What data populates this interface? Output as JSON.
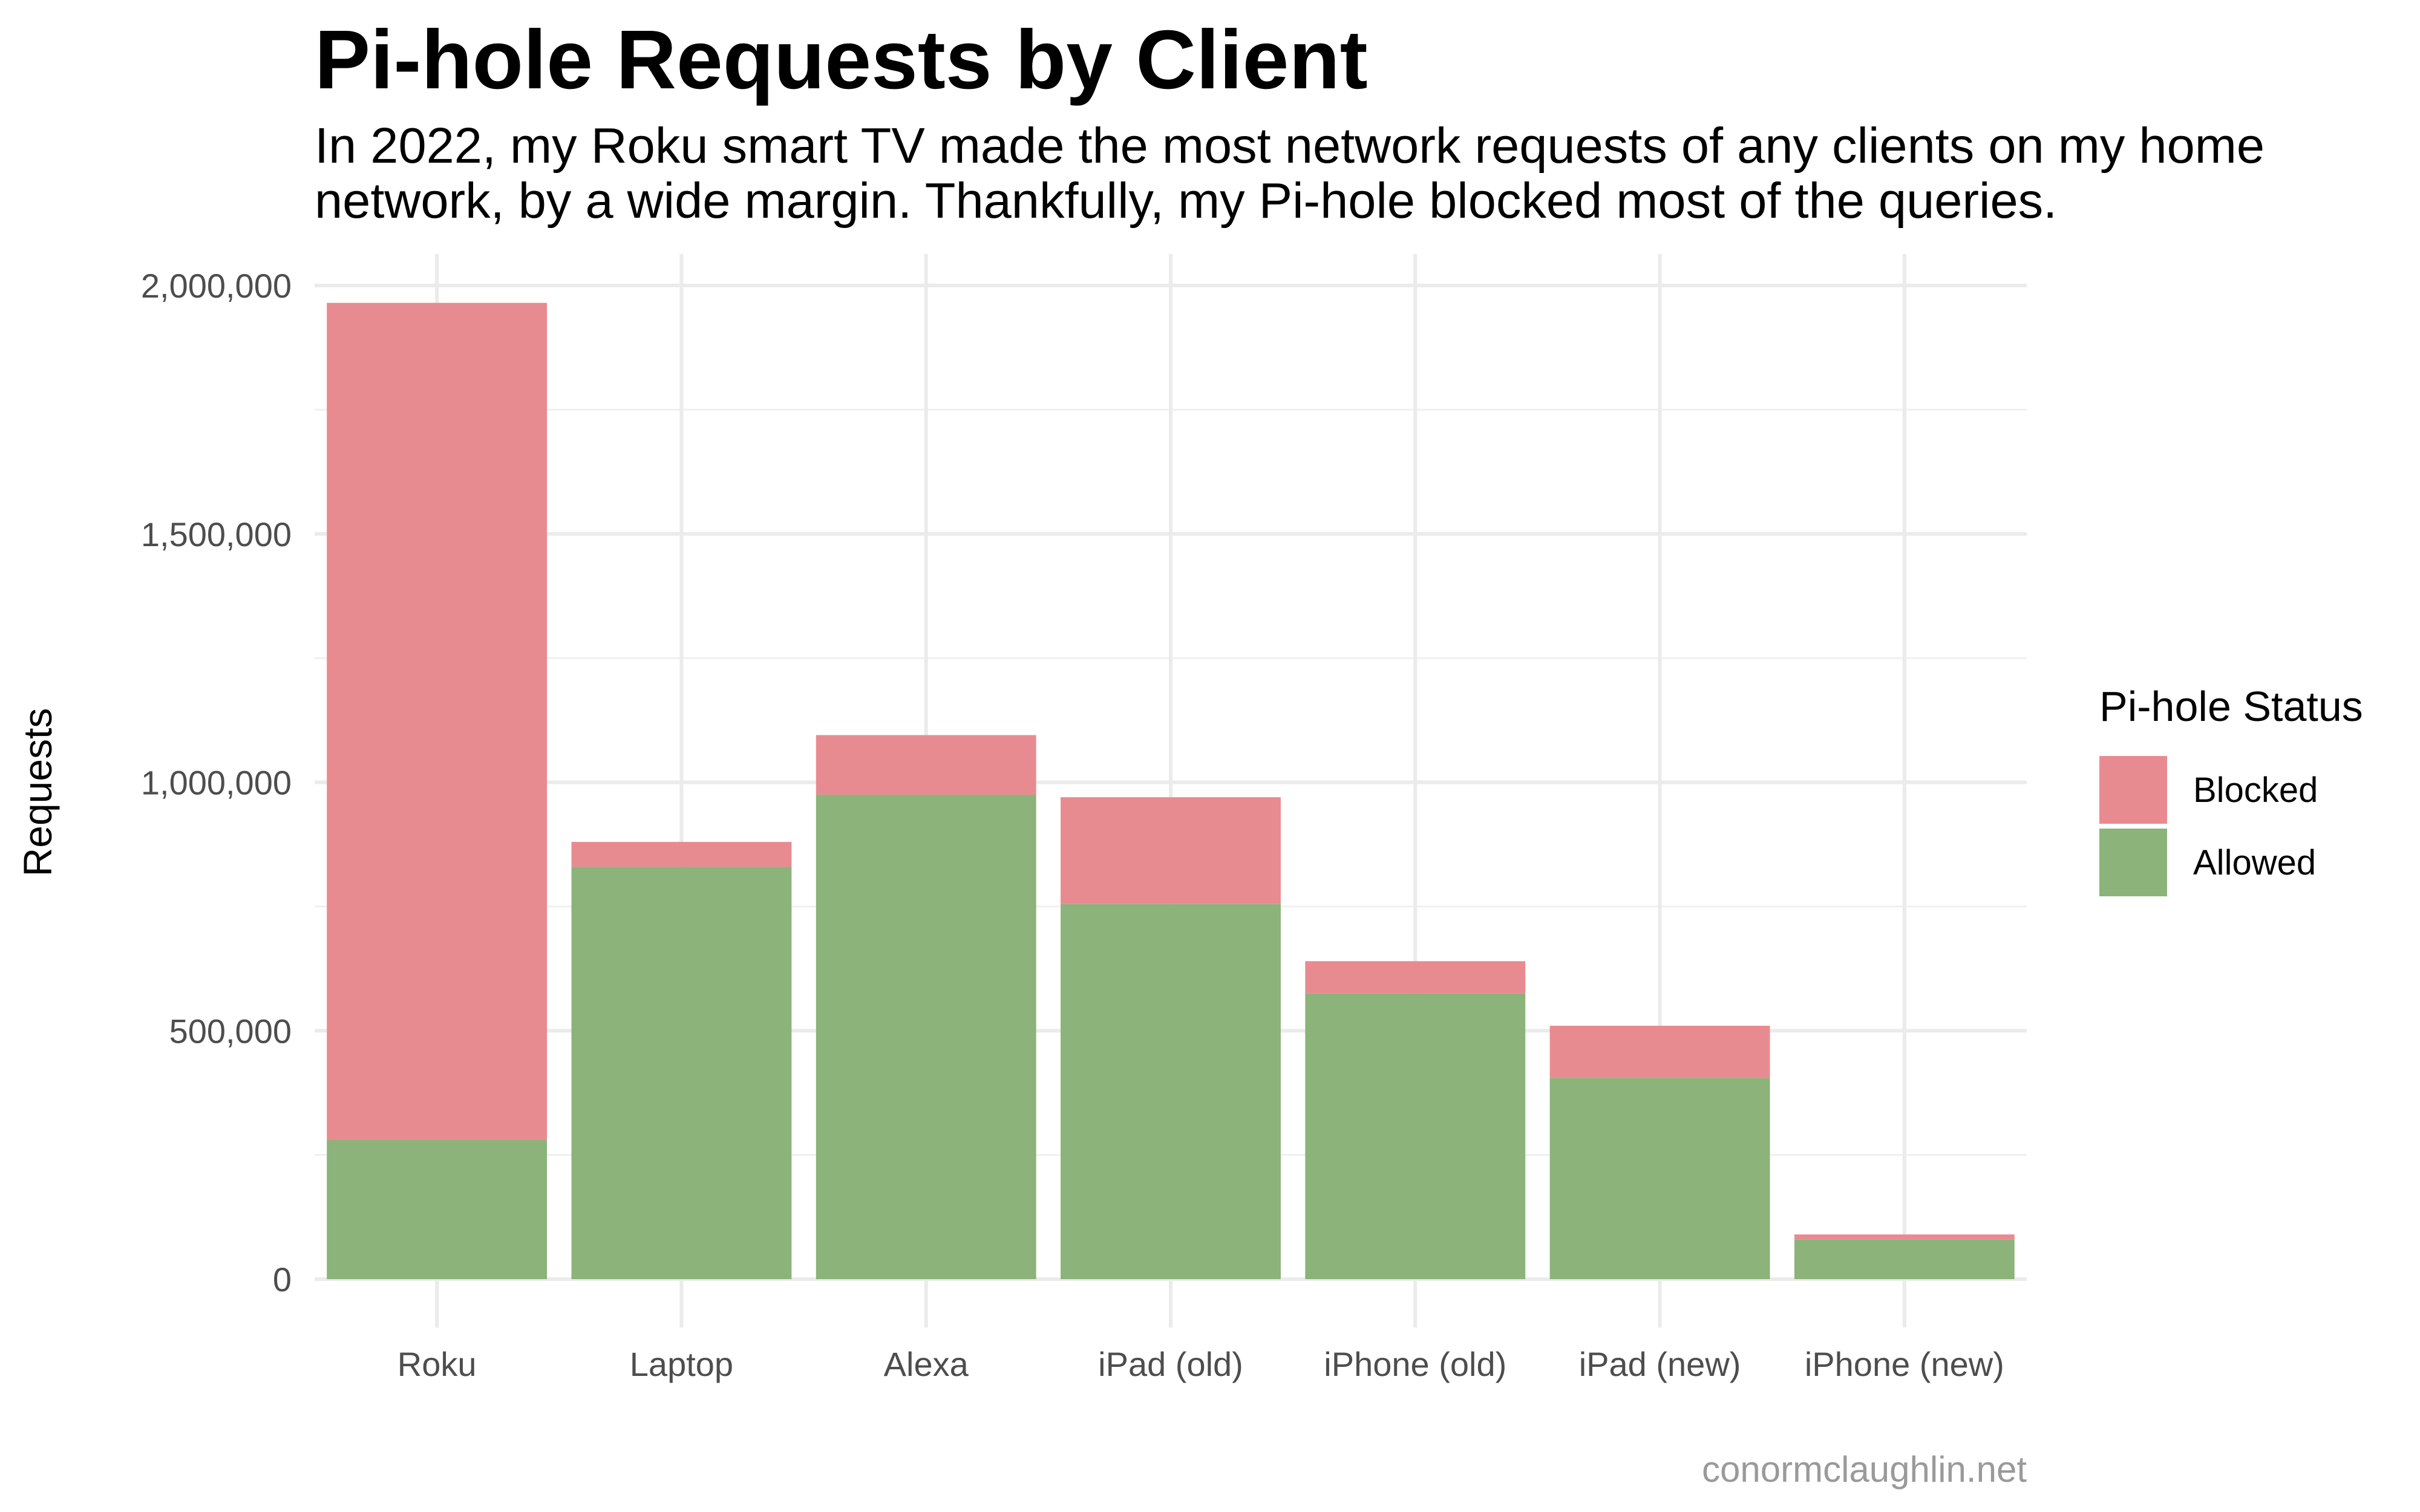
{
  "caption": "conormclaughlin.net",
  "chart_data": {
    "type": "bar",
    "stacked": true,
    "title": "Pi-hole Requests by Client",
    "subtitle": "In 2022, my Roku smart TV made the most network requests of any clients on my home network, by a wide margin. Thankfully, my Pi-hole blocked most of the queries.",
    "xlabel": "",
    "ylabel": "Requests",
    "ylim": [
      0,
      2000000
    ],
    "y_ticks": [
      0,
      500000,
      1000000,
      1500000,
      2000000
    ],
    "y_tick_labels": [
      "0",
      "500,000",
      "1,000,000",
      "1,500,000",
      "2,000,000"
    ],
    "grid": true,
    "categories": [
      "Roku",
      "Laptop",
      "Alexa",
      "iPad (old)",
      "iPhone (old)",
      "iPad (new)",
      "iPhone (new)"
    ],
    "series": [
      {
        "name": "Allowed",
        "color": "#8bb37a",
        "values": [
          280000,
          830000,
          975000,
          755000,
          575000,
          405000,
          80000
        ]
      },
      {
        "name": "Blocked",
        "color": "#e88b91",
        "values": [
          1685000,
          50000,
          120000,
          215000,
          65000,
          105000,
          10000
        ]
      }
    ],
    "legend": {
      "title": "Pi-hole Status",
      "position": "right",
      "items": [
        {
          "label": "Blocked",
          "color": "#e88b91"
        },
        {
          "label": "Allowed",
          "color": "#8bb37a"
        }
      ]
    }
  }
}
